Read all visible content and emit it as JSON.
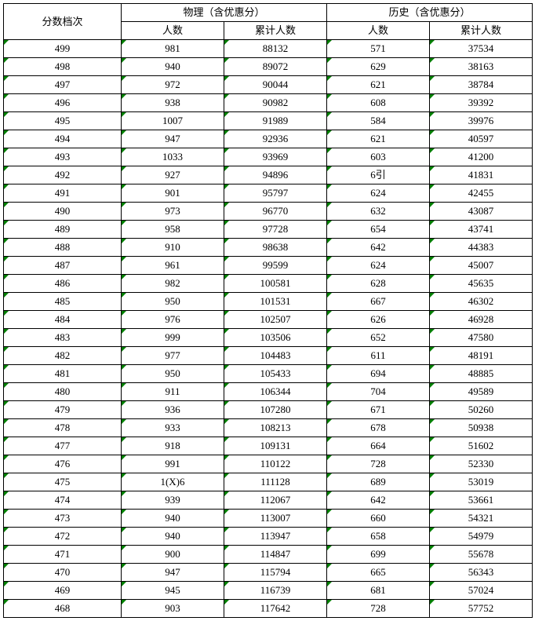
{
  "header": {
    "score_col": "分数档次",
    "group_physics": "物理（含优惠分）",
    "group_history": "历史（含优惠分）",
    "count_label": "人数",
    "cumulative_label": "累计人数"
  },
  "style": {
    "background_color": "#ffffff",
    "text_color": "#000000",
    "border_color": "#000000",
    "triangle_color": "#008000",
    "font_family": "SimSun",
    "font_size_pt": 10
  },
  "columns": [
    "分数档次",
    "物理人数",
    "物理累计人数",
    "历史人数",
    "历史累计人数"
  ],
  "rows": [
    {
      "score": "499",
      "pn": "981",
      "pc": "88132",
      "hn": "571",
      "hc": "37534"
    },
    {
      "score": "498",
      "pn": "940",
      "pc": "89072",
      "hn": "629",
      "hc": "38163"
    },
    {
      "score": "497",
      "pn": "972",
      "pc": "90044",
      "hn": "621",
      "hc": "38784"
    },
    {
      "score": "496",
      "pn": "938",
      "pc": "90982",
      "hn": "608",
      "hc": "39392"
    },
    {
      "score": "495",
      "pn": "1007",
      "pc": "91989",
      "hn": "584",
      "hc": "39976"
    },
    {
      "score": "494",
      "pn": "947",
      "pc": "92936",
      "hn": "621",
      "hc": "40597"
    },
    {
      "score": "493",
      "pn": "1033",
      "pc": "93969",
      "hn": "603",
      "hc": "41200"
    },
    {
      "score": "492",
      "pn": "927",
      "pc": "94896",
      "hn": "6引",
      "hc": "41831"
    },
    {
      "score": "491",
      "pn": "901",
      "pc": "95797",
      "hn": "624",
      "hc": "42455"
    },
    {
      "score": "490",
      "pn": "973",
      "pc": "96770",
      "hn": "632",
      "hc": "43087"
    },
    {
      "score": "489",
      "pn": "958",
      "pc": "97728",
      "hn": "654",
      "hc": "43741"
    },
    {
      "score": "488",
      "pn": "910",
      "pc": "98638",
      "hn": "642",
      "hc": "44383"
    },
    {
      "score": "487",
      "pn": "961",
      "pc": "99599",
      "hn": "624",
      "hc": "45007"
    },
    {
      "score": "486",
      "pn": "982",
      "pc": "100581",
      "hn": "628",
      "hc": "45635"
    },
    {
      "score": "485",
      "pn": "950",
      "pc": "101531",
      "hn": "667",
      "hc": "46302"
    },
    {
      "score": "484",
      "pn": "976",
      "pc": "102507",
      "hn": "626",
      "hc": "46928"
    },
    {
      "score": "483",
      "pn": "999",
      "pc": "103506",
      "hn": "652",
      "hc": "47580"
    },
    {
      "score": "482",
      "pn": "977",
      "pc": "104483",
      "hn": "611",
      "hc": "48191"
    },
    {
      "score": "481",
      "pn": "950",
      "pc": "105433",
      "hn": "694",
      "hc": "48885"
    },
    {
      "score": "480",
      "pn": "911",
      "pc": "106344",
      "hn": "704",
      "hc": "49589"
    },
    {
      "score": "479",
      "pn": "936",
      "pc": "107280",
      "hn": "671",
      "hc": "50260"
    },
    {
      "score": "478",
      "pn": "933",
      "pc": "108213",
      "hn": "678",
      "hc": "50938"
    },
    {
      "score": "477",
      "pn": "918",
      "pc": "109131",
      "hn": "664",
      "hc": "51602"
    },
    {
      "score": "476",
      "pn": "991",
      "pc": "110122",
      "hn": "728",
      "hc": "52330"
    },
    {
      "score": "475",
      "pn": "1(X)6",
      "pc": "111128",
      "hn": "689",
      "hc": "53019"
    },
    {
      "score": "474",
      "pn": "939",
      "pc": "112067",
      "hn": "642",
      "hc": "53661"
    },
    {
      "score": "473",
      "pn": "940",
      "pc": "113007",
      "hn": "660",
      "hc": "54321"
    },
    {
      "score": "472",
      "pn": "940",
      "pc": "113947",
      "hn": "658",
      "hc": "54979"
    },
    {
      "score": "471",
      "pn": "900",
      "pc": "114847",
      "hn": "699",
      "hc": "55678"
    },
    {
      "score": "470",
      "pn": "947",
      "pc": "115794",
      "hn": "665",
      "hc": "56343"
    },
    {
      "score": "469",
      "pn": "945",
      "pc": "116739",
      "hn": "681",
      "hc": "57024"
    },
    {
      "score": "468",
      "pn": "903",
      "pc": "117642",
      "hn": "728",
      "hc": "57752"
    }
  ]
}
